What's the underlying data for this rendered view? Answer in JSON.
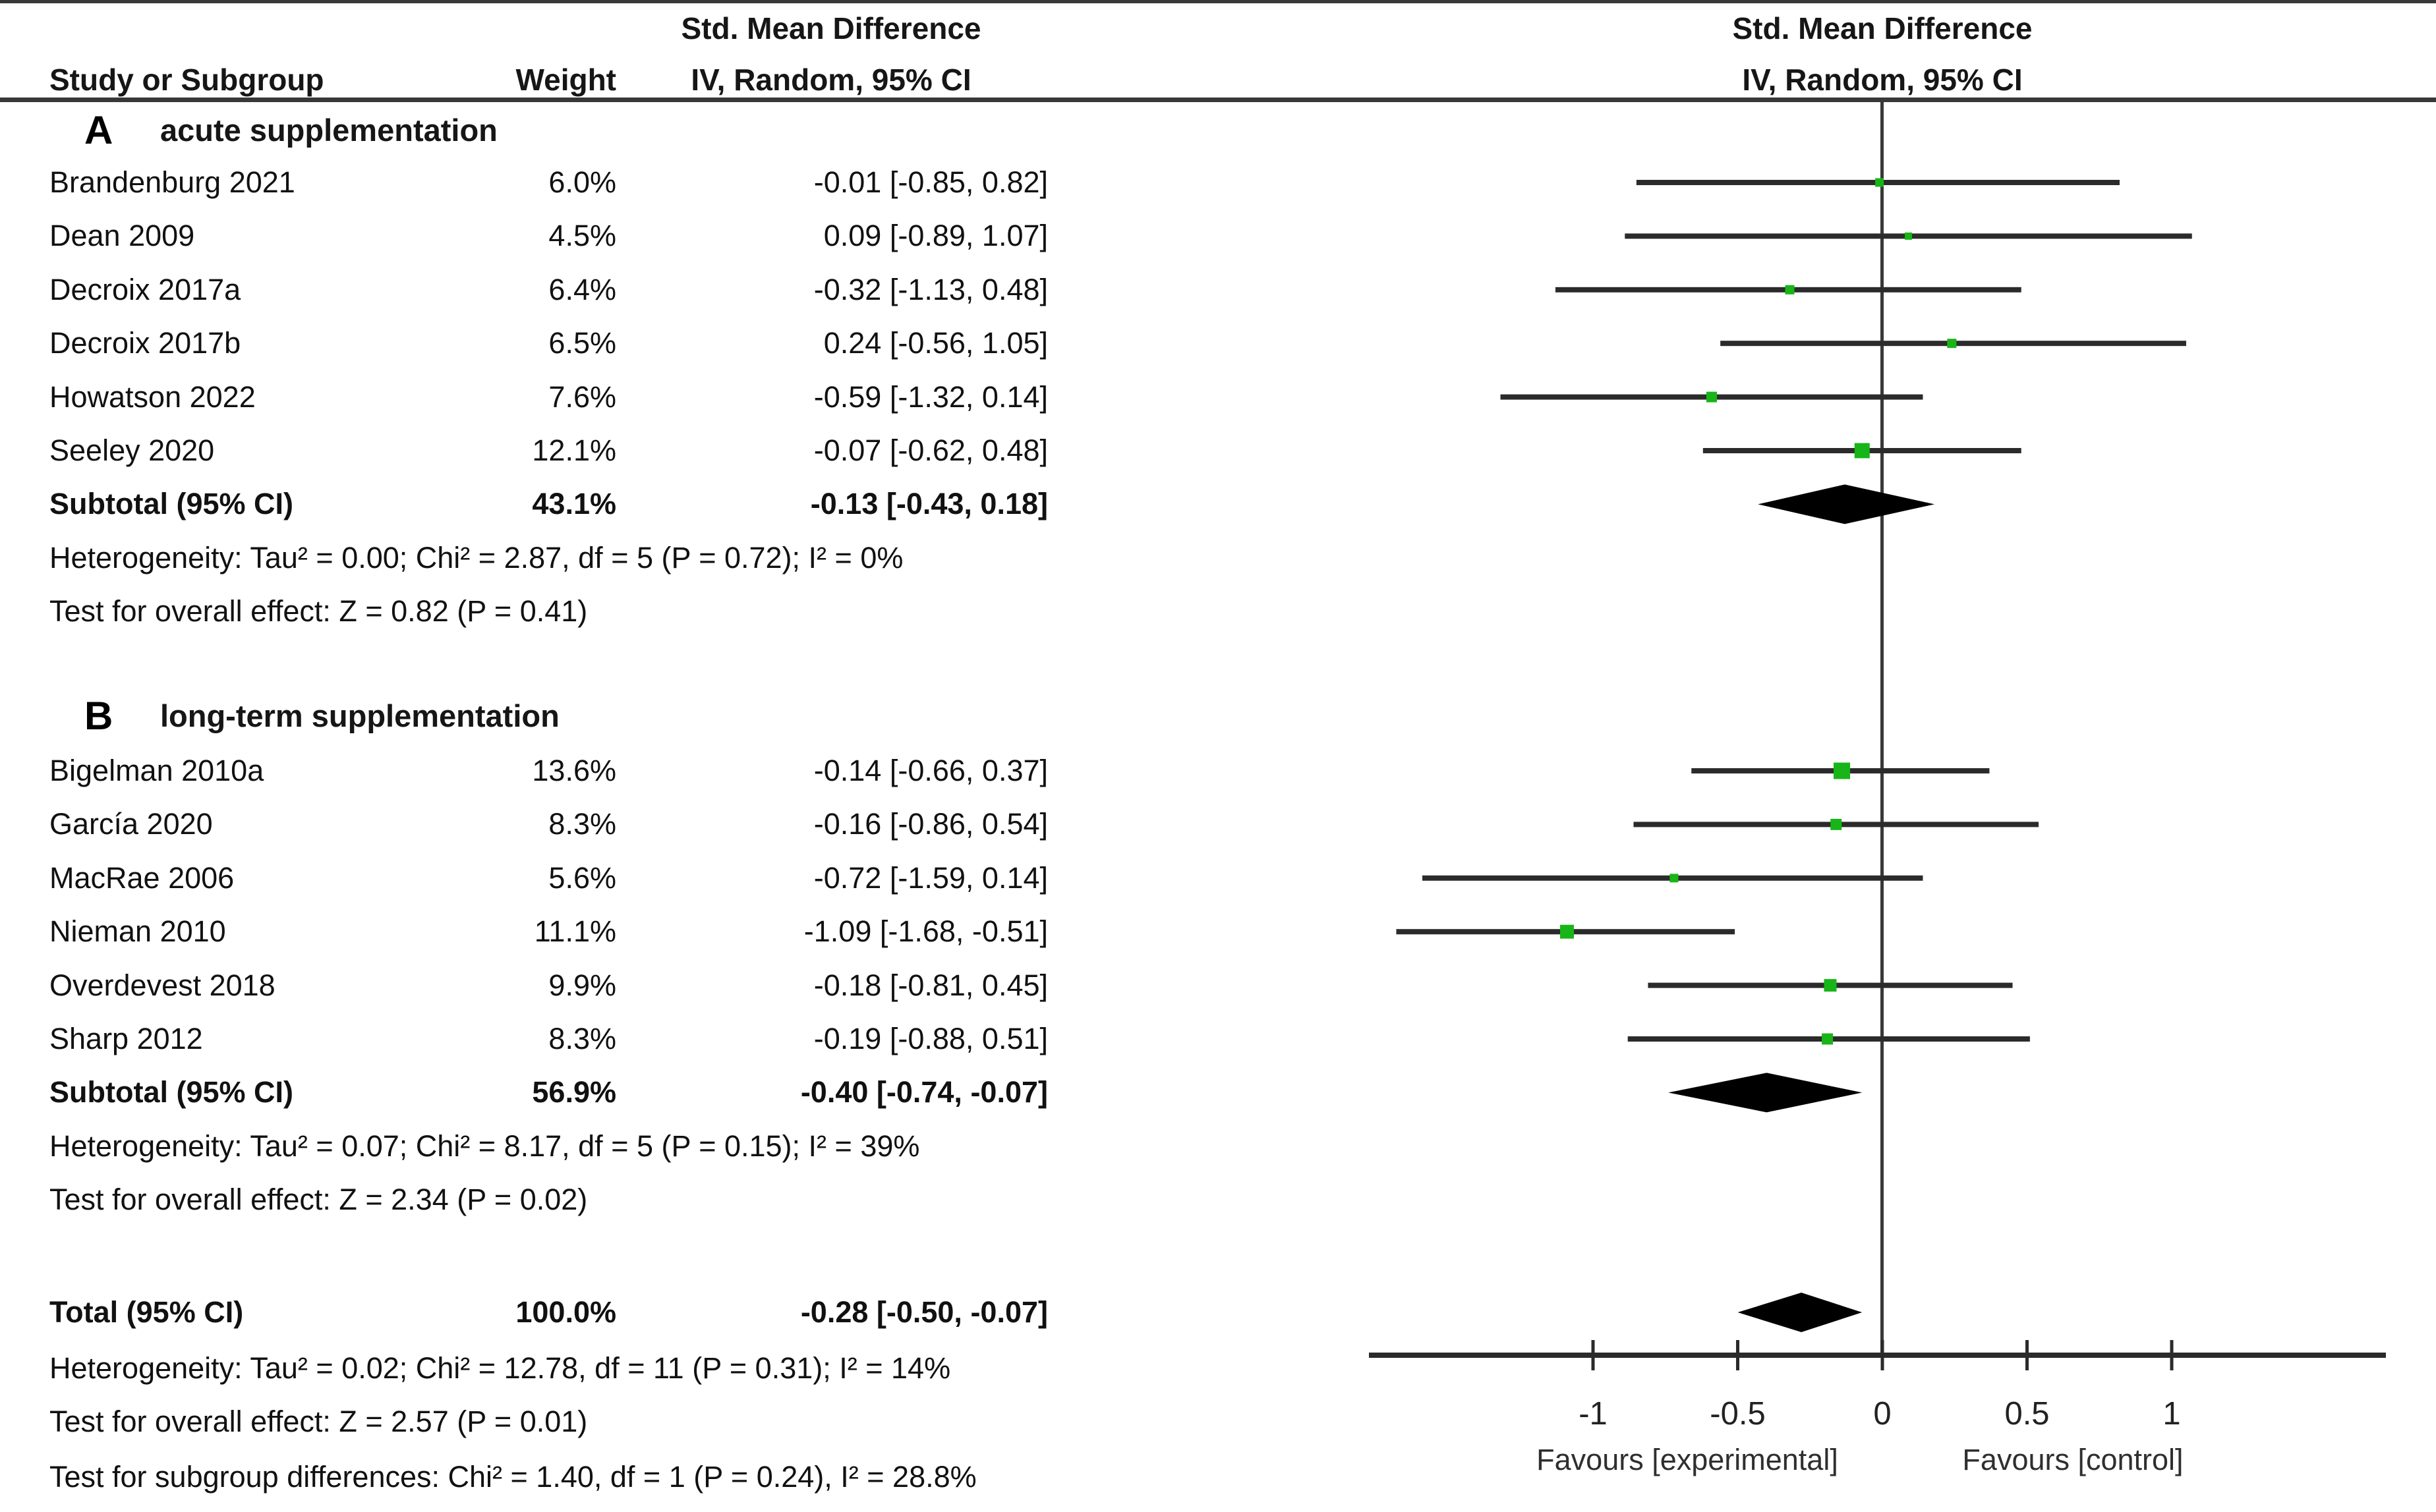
{
  "chart_data": {
    "type": "forest",
    "title": "",
    "effect_measure": "Std. Mean Difference",
    "method": "IV, Random, 95% CI",
    "headers": {
      "study": "Study or Subgroup",
      "weight": "Weight",
      "effect": "Std. Mean Difference",
      "model": "IV, Random, 95% CI"
    },
    "axis": {
      "xlim": [
        -1.8,
        1.9
      ],
      "ticks": [
        {
          "v": -1,
          "label": "-1"
        },
        {
          "v": -0.5,
          "label": "-0.5"
        },
        {
          "v": 0,
          "label": "0"
        },
        {
          "v": 0.5,
          "label": "0.5"
        },
        {
          "v": 1,
          "label": "1"
        }
      ],
      "favours_left": "Favours [experimental]",
      "favours_right": "Favours [control]"
    },
    "colors": {
      "marker": "#17b517",
      "line": "#2b2b2b",
      "diamond": "#000000",
      "rule": "#383838"
    },
    "groups": [
      {
        "letter": "A",
        "title": "acute supplementation",
        "studies": [
          {
            "name": "Brandenburg 2021",
            "weight": 6.0,
            "weight_label": "6.0%",
            "est": -0.01,
            "lo": -0.85,
            "hi": 0.82,
            "est_label": "-0.01 [-0.85, 0.82]"
          },
          {
            "name": "Dean 2009",
            "weight": 4.5,
            "weight_label": "4.5%",
            "est": 0.09,
            "lo": -0.89,
            "hi": 1.07,
            "est_label": "0.09 [-0.89, 1.07]"
          },
          {
            "name": "Decroix 2017a",
            "weight": 6.4,
            "weight_label": "6.4%",
            "est": -0.32,
            "lo": -1.13,
            "hi": 0.48,
            "est_label": "-0.32 [-1.13, 0.48]"
          },
          {
            "name": "Decroix 2017b",
            "weight": 6.5,
            "weight_label": "6.5%",
            "est": 0.24,
            "lo": -0.56,
            "hi": 1.05,
            "est_label": "0.24 [-0.56, 1.05]"
          },
          {
            "name": "Howatson 2022",
            "weight": 7.6,
            "weight_label": "7.6%",
            "est": -0.59,
            "lo": -1.32,
            "hi": 0.14,
            "est_label": "-0.59 [-1.32, 0.14]"
          },
          {
            "name": "Seeley 2020",
            "weight": 12.1,
            "weight_label": "12.1%",
            "est": -0.07,
            "lo": -0.62,
            "hi": 0.48,
            "est_label": "-0.07 [-0.62, 0.48]"
          }
        ],
        "subtotal": {
          "label": "Subtotal (95% CI)",
          "weight_label": "43.1%",
          "est": -0.13,
          "lo": -0.43,
          "hi": 0.18,
          "est_label": "-0.13 [-0.43, 0.18]"
        },
        "heterogeneity": "Heterogeneity: Tau² = 0.00; Chi² = 2.87, df = 5 (P = 0.72); I² = 0%",
        "overall_test": "Test for overall effect: Z = 0.82 (P = 0.41)"
      },
      {
        "letter": "B",
        "title": "long-term supplementation",
        "studies": [
          {
            "name": "Bigelman 2010a",
            "weight": 13.6,
            "weight_label": "13.6%",
            "est": -0.14,
            "lo": -0.66,
            "hi": 0.37,
            "est_label": "-0.14 [-0.66, 0.37]"
          },
          {
            "name": "García 2020",
            "weight": 8.3,
            "weight_label": "8.3%",
            "est": -0.16,
            "lo": -0.86,
            "hi": 0.54,
            "est_label": "-0.16 [-0.86, 0.54]"
          },
          {
            "name": "MacRae 2006",
            "weight": 5.6,
            "weight_label": "5.6%",
            "est": -0.72,
            "lo": -1.59,
            "hi": 0.14,
            "est_label": "-0.72 [-1.59, 0.14]"
          },
          {
            "name": "Nieman 2010",
            "weight": 11.1,
            "weight_label": "11.1%",
            "est": -1.09,
            "lo": -1.68,
            "hi": -0.51,
            "est_label": "-1.09 [-1.68, -0.51]"
          },
          {
            "name": "Overdevest 2018",
            "weight": 9.9,
            "weight_label": "9.9%",
            "est": -0.18,
            "lo": -0.81,
            "hi": 0.45,
            "est_label": "-0.18 [-0.81, 0.45]"
          },
          {
            "name": "Sharp 2012",
            "weight": 8.3,
            "weight_label": "8.3%",
            "est": -0.19,
            "lo": -0.88,
            "hi": 0.51,
            "est_label": "-0.19 [-0.88, 0.51]"
          }
        ],
        "subtotal": {
          "label": "Subtotal (95% CI)",
          "weight_label": "56.9%",
          "est": -0.4,
          "lo": -0.74,
          "hi": -0.07,
          "est_label": "-0.40 [-0.74, -0.07]"
        },
        "heterogeneity": "Heterogeneity: Tau² = 0.07; Chi² = 8.17, df = 5 (P = 0.15); I² = 39%",
        "overall_test": "Test for overall effect: Z = 2.34 (P = 0.02)"
      }
    ],
    "total": {
      "label": "Total (95% CI)",
      "weight_label": "100.0%",
      "est": -0.28,
      "lo": -0.5,
      "hi": -0.07,
      "est_label": "-0.28 [-0.50, -0.07]"
    },
    "footer": {
      "heterogeneity": "Heterogeneity: Tau² = 0.02; Chi² = 12.78, df = 11 (P = 0.31); I² = 14%",
      "overall_test": "Test for overall effect: Z = 2.57 (P = 0.01)",
      "subgroup_test": "Test for subgroup differences: Chi² = 1.40, df = 1 (P = 0.24), I² = 28.8%"
    }
  }
}
